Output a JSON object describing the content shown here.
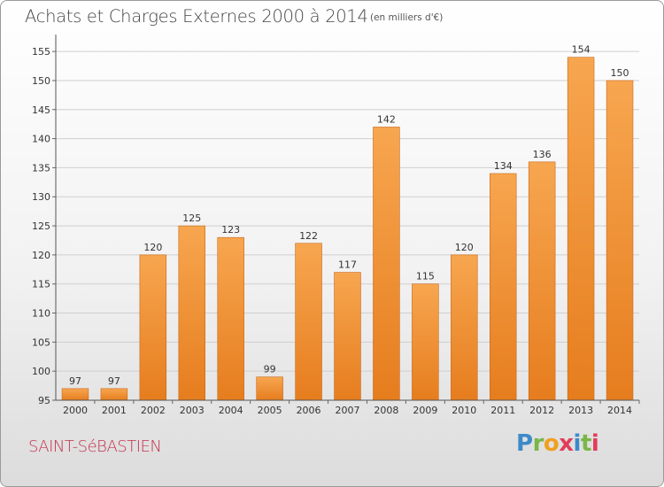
{
  "header": {
    "title": "Achats et Charges Externes 2000 à 2014",
    "unit": "(en milliers d'€)"
  },
  "footer": {
    "commune": "SAINT-SéBASTIEN",
    "logo_letters": [
      "P",
      "r",
      "o",
      "x",
      "i",
      "t",
      "i"
    ]
  },
  "colors": {
    "bar_light": "#f7a650",
    "bar_dark": "#e67d1e",
    "bar_edge": "#c9681a",
    "grid": "#cfcfcf",
    "commune": "#c3314a"
  },
  "chart_data": {
    "type": "bar",
    "title": "Achats et Charges Externes 2000 à 2014",
    "subtitle": "(en milliers d'€)",
    "xlabel": "",
    "ylabel": "",
    "categories": [
      "2000",
      "2001",
      "2002",
      "2003",
      "2004",
      "2005",
      "2006",
      "2007",
      "2008",
      "2009",
      "2010",
      "2011",
      "2012",
      "2013",
      "2014"
    ],
    "values": [
      97,
      97,
      120,
      125,
      123,
      99,
      122,
      117,
      142,
      115,
      120,
      134,
      136,
      154,
      150
    ],
    "ylim": [
      95,
      157
    ],
    "yticks": [
      95,
      100,
      105,
      110,
      115,
      120,
      125,
      130,
      135,
      140,
      145,
      150,
      155
    ],
    "grid": true,
    "data_labels": true
  }
}
